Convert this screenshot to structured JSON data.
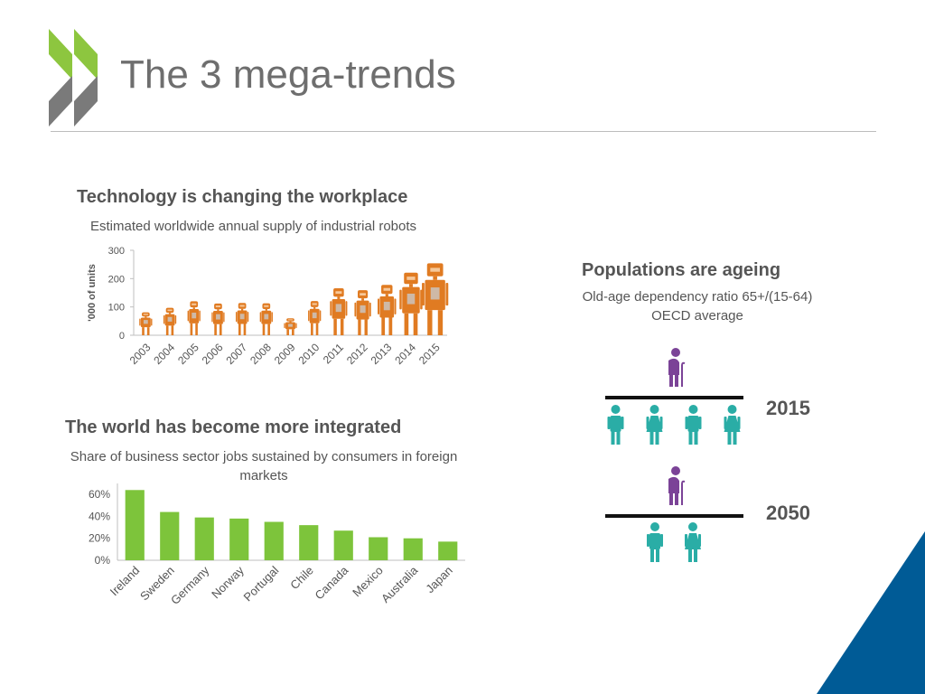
{
  "slide": {
    "title": "The 3 mega-trends"
  },
  "theme": {
    "robot_color": "#e07b22",
    "bar_color": "#7dc43b",
    "elderly_color": "#7b4397",
    "people_color": "#2aada6",
    "logo_green": "#8dc63f",
    "logo_gray": "#7a7a7a",
    "corner_blue": "#005b96"
  },
  "technology": {
    "heading": "Technology is changing the workplace",
    "subtitle": "Estimated worldwide annual supply of industrial robots"
  },
  "integration": {
    "heading": "The world has become more integrated",
    "subtitle": "Share of business sector jobs sustained by consumers in foreign markets"
  },
  "ageing": {
    "heading": "Populations are ageing",
    "subtitle_line1": "Old-age dependency ratio 65+/(15-64)",
    "subtitle_line2": "OECD average",
    "year_2015": "2015",
    "year_2050": "2050",
    "ratio_2015": {
      "elderly": 1,
      "working_age": 4
    },
    "ratio_2050": {
      "elderly": 1,
      "working_age": 2
    }
  },
  "chart_data": [
    {
      "type": "bar",
      "title": "Estimated worldwide annual supply of industrial robots",
      "ylabel": "'000 of units",
      "xlabel": "",
      "ylim": [
        0,
        300
      ],
      "yticks": [
        "0",
        "100",
        "200",
        "300"
      ],
      "categories": [
        "2003",
        "2004",
        "2005",
        "2006",
        "2007",
        "2008",
        "2009",
        "2010",
        "2011",
        "2012",
        "2013",
        "2014",
        "2015"
      ],
      "values": [
        81,
        97,
        120,
        112,
        114,
        113,
        60,
        121,
        166,
        159,
        178,
        221,
        254
      ],
      "mark": "robot-icon"
    },
    {
      "type": "bar",
      "title": "Share of business sector jobs sustained by consumers in foreign markets",
      "xlabel": "",
      "ylabel": "",
      "ylim": [
        0,
        70
      ],
      "yticks": [
        "0%",
        "20%",
        "40%",
        "60%"
      ],
      "categories": [
        "Ireland",
        "Sweden",
        "Germany",
        "Norway",
        "Portugal",
        "Chile",
        "Canada",
        "Mexico",
        "Australia",
        "Japan"
      ],
      "values": [
        64,
        44,
        39,
        38,
        35,
        32,
        27,
        21,
        20,
        17
      ]
    }
  ]
}
